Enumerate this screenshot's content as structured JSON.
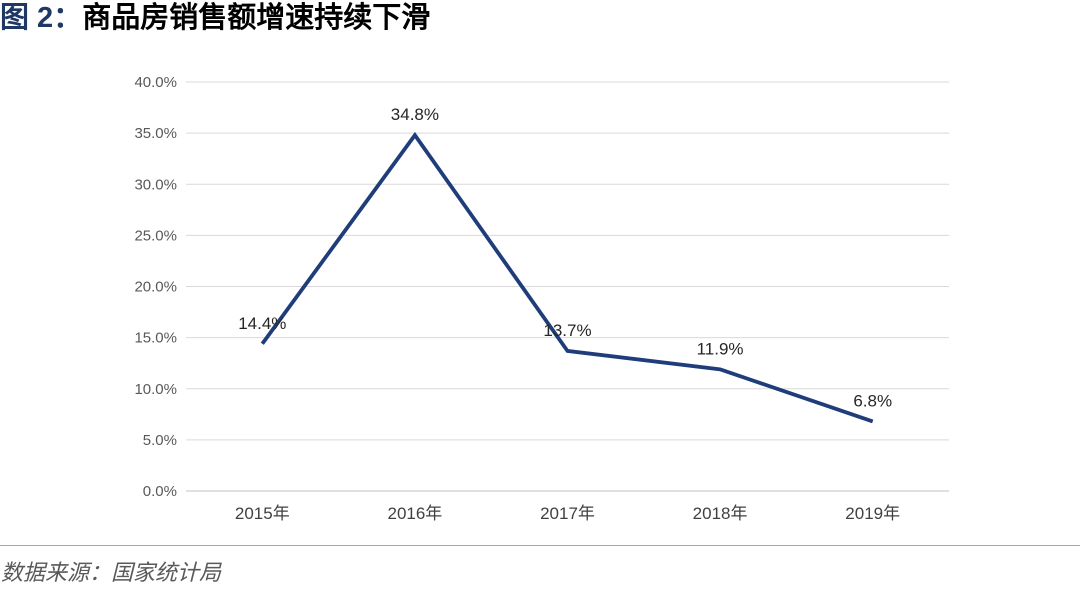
{
  "header": {
    "figure_label": "图 2：",
    "title": "商品房销售额增速持续下滑"
  },
  "source": {
    "text": "数据来源：国家统计局"
  },
  "colors": {
    "title_accent": "#1F3864",
    "title_text": "#000000",
    "line": "#1F3D7A",
    "gridline": "#D9D9D9",
    "axis_line": "#C0C0C0",
    "y_tick_label": "#595959",
    "x_tick_label": "#404040",
    "data_label": "#262626",
    "separator": "#A6A6A6",
    "source_text": "#595959",
    "background": "#FFFFFF"
  },
  "chart_data": {
    "type": "line",
    "title": "商品房销售额增速持续下滑",
    "categories": [
      "2015年",
      "2016年",
      "2017年",
      "2018年",
      "2019年"
    ],
    "values": [
      14.4,
      34.8,
      13.7,
      11.9,
      6.8
    ],
    "data_labels": [
      "14.4%",
      "34.8%",
      "13.7%",
      "11.9%",
      "6.8%"
    ],
    "y_ticks": [
      0,
      5,
      10,
      15,
      20,
      25,
      30,
      35,
      40
    ],
    "y_tick_labels": [
      "0.0%",
      "5.0%",
      "10.0%",
      "15.0%",
      "20.0%",
      "25.0%",
      "30.0%",
      "35.0%",
      "40.0%"
    ],
    "xlabel": "",
    "ylabel": "",
    "ylim": [
      0,
      40
    ],
    "grid": true,
    "legend_position": "none"
  }
}
